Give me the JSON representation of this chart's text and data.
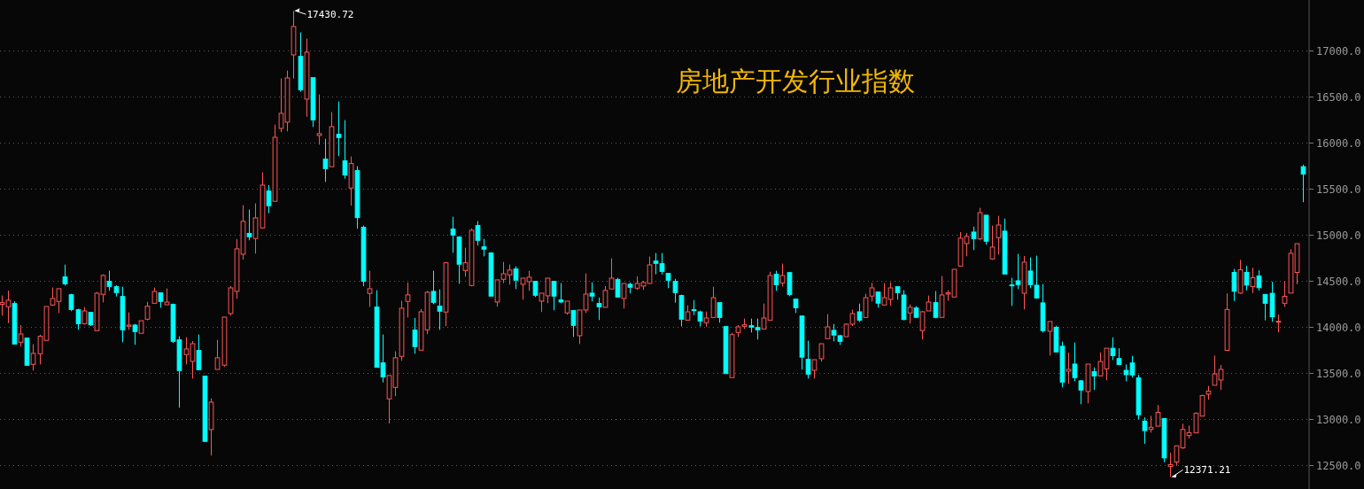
{
  "chart_data": {
    "type": "candlestick",
    "title": "房地产开发行业指数",
    "categories": [
      null,
      null,
      null,
      null,
      null,
      null,
      null,
      null,
      null,
      null,
      null,
      null,
      null,
      null,
      null,
      null,
      null,
      null,
      null,
      null,
      null,
      null,
      null,
      null,
      null,
      null,
      null,
      null,
      null,
      null,
      null,
      null,
      null,
      null,
      null,
      null,
      null,
      null,
      null,
      null,
      null,
      null,
      null,
      null,
      null,
      null,
      null,
      null,
      null,
      null,
      null,
      null,
      null,
      null,
      null,
      null,
      null,
      null,
      null,
      null,
      null,
      null,
      null,
      null,
      null,
      null,
      null,
      null,
      null,
      null,
      null,
      null,
      null,
      null,
      null,
      null,
      null,
      null,
      null,
      null,
      null,
      null,
      null,
      null,
      null,
      null,
      null,
      null,
      null,
      null,
      null,
      null,
      null,
      null,
      null,
      null,
      null,
      null,
      null,
      null,
      null,
      null,
      null,
      null,
      null,
      null,
      null,
      null,
      null,
      null,
      null,
      null,
      null,
      null,
      null,
      null,
      null,
      null,
      null,
      null,
      null,
      null,
      null,
      null,
      null,
      null,
      null,
      null,
      null,
      null,
      null,
      null,
      null,
      null,
      null,
      null,
      null,
      null,
      null,
      null,
      null,
      null,
      null,
      null,
      null,
      null,
      null,
      null,
      null,
      null,
      null,
      null,
      null,
      null,
      null,
      null,
      null,
      null,
      null,
      null,
      null,
      null,
      null,
      null,
      null,
      null,
      null,
      null,
      null,
      null,
      null,
      null,
      null,
      null,
      null,
      null,
      null,
      null,
      null,
      null,
      null,
      null,
      null,
      null,
      null,
      null,
      null,
      null,
      null,
      null,
      null,
      null,
      null,
      null,
      null,
      null,
      null,
      null,
      null,
      null,
      null,
      null,
      null,
      null,
      null,
      null
    ],
    "ohlc": [
      [
        14244,
        14340,
        14122,
        14263
      ],
      [
        14218,
        14394,
        14042,
        14289
      ],
      [
        14253,
        14279,
        13814,
        13814
      ],
      [
        13833,
        14019,
        13785,
        13923
      ],
      [
        13878,
        13878,
        13583,
        13583
      ],
      [
        13593,
        13811,
        13526,
        13712
      ],
      [
        13708,
        13914,
        13593,
        13898
      ],
      [
        13853,
        14221,
        13853,
        14221
      ],
      [
        14237,
        14426,
        14228,
        14308
      ],
      [
        14276,
        14414,
        14151,
        14414
      ],
      [
        14542,
        14676,
        14449,
        14468
      ],
      [
        14349,
        14359,
        14170,
        14189
      ],
      [
        14186,
        14196,
        13968,
        14035
      ],
      [
        14035,
        14215,
        14026,
        14173
      ],
      [
        14157,
        14157,
        14010,
        14022
      ],
      [
        13958,
        14378,
        13958,
        14365
      ],
      [
        14353,
        14571,
        14266,
        14558
      ],
      [
        14494,
        14609,
        14391,
        14439
      ],
      [
        14436,
        14452,
        14330,
        14372
      ],
      [
        14330,
        14436,
        13833,
        13968
      ],
      [
        14006,
        14157,
        13968,
        14019
      ],
      [
        14019,
        14032,
        13805,
        13949
      ],
      [
        13930,
        14067,
        13930,
        14067
      ],
      [
        14083,
        14272,
        14071,
        14224
      ],
      [
        14256,
        14426,
        14256,
        14385
      ],
      [
        14369,
        14369,
        14208,
        14276
      ],
      [
        14240,
        14417,
        14240,
        14269
      ],
      [
        14244,
        14253,
        13824,
        13843
      ],
      [
        13859,
        13898,
        13122,
        13526
      ],
      [
        13699,
        13888,
        13593,
        13760
      ],
      [
        13625,
        13846,
        13439,
        13817
      ],
      [
        13744,
        13917,
        13535,
        13535
      ],
      [
        13465,
        13465,
        12757,
        12757
      ],
      [
        12885,
        13224,
        12603,
        13183
      ],
      [
        13538,
        13859,
        13538,
        13664
      ],
      [
        13584,
        14106,
        13568,
        14106
      ],
      [
        14145,
        14443,
        14122,
        14423
      ],
      [
        14385,
        14952,
        14305,
        14847
      ],
      [
        14789,
        15321,
        14730,
        15145
      ],
      [
        15015,
        15273,
        14940,
        14978
      ],
      [
        14959,
        15340,
        14795,
        15183
      ],
      [
        15074,
        15677,
        15065,
        15539
      ],
      [
        15475,
        15539,
        15234,
        15315
      ],
      [
        15363,
        16196,
        15363,
        16058
      ],
      [
        16154,
        16696,
        16113,
        16318
      ],
      [
        16222,
        16782,
        16122,
        16702
      ],
      [
        16952,
        17430.72,
        16696,
        17260
      ],
      [
        16936,
        17196,
        16552,
        16574
      ],
      [
        16472,
        17129,
        16282,
        16981
      ],
      [
        16705,
        16705,
        16170,
        16247
      ],
      [
        16077,
        16523,
        15978,
        16097
      ],
      [
        15821,
        16042,
        15574,
        15718
      ],
      [
        15738,
        16331,
        15738,
        16173
      ],
      [
        16090,
        16446,
        15853,
        16055
      ],
      [
        15802,
        16244,
        15609,
        15648
      ],
      [
        15507,
        15850,
        15315,
        15773
      ],
      [
        15696,
        15744,
        15065,
        15186
      ],
      [
        15081,
        15100,
        14440,
        14494
      ],
      [
        14363,
        14609,
        14218,
        14414
      ],
      [
        14215,
        14398,
        13561,
        13561
      ],
      [
        13609,
        13917,
        13398,
        13456
      ],
      [
        13218,
        13472,
        12952,
        13472
      ],
      [
        13343,
        13734,
        13247,
        13664
      ],
      [
        13680,
        14283,
        13632,
        14202
      ],
      [
        14276,
        14481,
        14103,
        14347
      ],
      [
        13965,
        14097,
        13707,
        13786
      ],
      [
        13747,
        14193,
        13747,
        14164
      ],
      [
        13968,
        14391,
        13920,
        14375
      ],
      [
        14385,
        14609,
        14247,
        14266
      ],
      [
        14225,
        14407,
        13968,
        14170
      ],
      [
        14161,
        14705,
        14007,
        14696
      ],
      [
        15061,
        15196,
        14805,
        14997
      ],
      [
        14975,
        14984,
        14468,
        14680
      ],
      [
        14612,
        14859,
        14545,
        14696
      ],
      [
        14449,
        15068,
        14439,
        15048
      ],
      [
        15100,
        15148,
        14882,
        14939
      ],
      [
        14869,
        14955,
        14766,
        14843
      ],
      [
        14802,
        14811,
        14334,
        14334
      ],
      [
        14270,
        14510,
        14218,
        14510
      ],
      [
        14516,
        14705,
        14475,
        14577
      ],
      [
        14564,
        14677,
        14459,
        14616
      ],
      [
        14628,
        14657,
        14411,
        14507
      ],
      [
        14462,
        14529,
        14295,
        14529
      ],
      [
        14491,
        14609,
        14391,
        14539
      ],
      [
        14494,
        14494,
        14324,
        14343
      ],
      [
        14279,
        14366,
        14161,
        14366
      ],
      [
        14337,
        14529,
        14257,
        14529
      ],
      [
        14494,
        14494,
        14180,
        14334
      ],
      [
        14292,
        14475,
        14257,
        14270
      ],
      [
        14151,
        14279,
        14132,
        14279
      ],
      [
        14177,
        14177,
        13891,
        14016
      ],
      [
        13904,
        14183,
        13814,
        14183
      ],
      [
        14183,
        14580,
        14151,
        14356
      ],
      [
        14366,
        14484,
        14276,
        14334
      ],
      [
        14254,
        14318,
        14074,
        14218
      ],
      [
        14212,
        14443,
        14212,
        14395
      ],
      [
        14411,
        14744,
        14411,
        14529
      ],
      [
        14513,
        14532,
        14324,
        14324
      ],
      [
        14308,
        14471,
        14199,
        14471
      ],
      [
        14462,
        14481,
        14362,
        14430
      ],
      [
        14420,
        14548,
        14401,
        14471
      ],
      [
        14443,
        14500,
        14401,
        14481
      ],
      [
        14471,
        14763,
        14471,
        14673
      ],
      [
        14714,
        14801,
        14570,
        14689
      ],
      [
        14686,
        14801,
        14570,
        14602
      ],
      [
        14580,
        14580,
        14420,
        14506
      ],
      [
        14493,
        14522,
        14263,
        14372
      ],
      [
        14340,
        14349,
        14006,
        14083
      ],
      [
        14073,
        14234,
        14073,
        14163
      ],
      [
        14186,
        14291,
        14128,
        14179
      ],
      [
        14163,
        14176,
        14006,
        14064
      ],
      [
        14045,
        14166,
        14003,
        14096
      ],
      [
        14102,
        14436,
        14102,
        14317
      ],
      [
        14263,
        14263,
        14045,
        14102
      ],
      [
        14003,
        14003,
        13493,
        13493
      ],
      [
        13449,
        13936,
        13449,
        13916
      ],
      [
        13939,
        14019,
        13891,
        14000
      ],
      [
        14006,
        14090,
        13977,
        14022
      ],
      [
        14013,
        14090,
        13939,
        13997
      ],
      [
        13993,
        14090,
        13862,
        13968
      ],
      [
        13977,
        14253,
        13977,
        14096
      ],
      [
        14073,
        14599,
        14073,
        14557
      ],
      [
        14570,
        14609,
        14391,
        14458
      ],
      [
        14477,
        14686,
        14439,
        14557
      ],
      [
        14589,
        14589,
        14333,
        14352
      ],
      [
        14301,
        14301,
        14150,
        14208
      ],
      [
        14118,
        14118,
        13535,
        13671
      ],
      [
        13647,
        13849,
        13439,
        13487
      ],
      [
        13529,
        13644,
        13439,
        13644
      ],
      [
        13654,
        13817,
        13622,
        13817
      ],
      [
        13872,
        14138,
        13872,
        14000
      ],
      [
        13962,
        14032,
        13843,
        13911
      ],
      [
        13904,
        13913,
        13804,
        13843
      ],
      [
        13894,
        14038,
        13894,
        14029
      ],
      [
        14029,
        14186,
        14010,
        14144
      ],
      [
        14163,
        14253,
        14054,
        14073
      ],
      [
        14102,
        14359,
        14102,
        14317
      ],
      [
        14334,
        14477,
        14275,
        14423
      ],
      [
        14378,
        14378,
        14208,
        14257
      ],
      [
        14237,
        14474,
        14237,
        14317
      ],
      [
        14298,
        14484,
        14228,
        14423
      ],
      [
        14436,
        14436,
        14295,
        14372
      ],
      [
        14346,
        14398,
        14071,
        14080
      ],
      [
        14151,
        14244,
        14035,
        14212
      ],
      [
        14205,
        14225,
        14103,
        14103
      ],
      [
        13959,
        14173,
        13862,
        14164
      ],
      [
        14173,
        14340,
        14173,
        14269
      ],
      [
        14263,
        14388,
        14093,
        14103
      ],
      [
        14103,
        14551,
        14103,
        14346
      ],
      [
        14356,
        14398,
        14285,
        14369
      ],
      [
        14324,
        14625,
        14324,
        14625
      ],
      [
        14660,
        15029,
        14660,
        14962
      ],
      [
        14904,
        15019,
        14766,
        14981
      ],
      [
        15029,
        15087,
        14833,
        14958
      ],
      [
        14955,
        15292,
        14939,
        15240
      ],
      [
        15212,
        15212,
        14891,
        14930
      ],
      [
        14737,
        15099,
        14728,
        14866
      ],
      [
        14968,
        15205,
        14785,
        15106
      ],
      [
        15039,
        15176,
        14574,
        14574
      ],
      [
        14455,
        14532,
        14228,
        14449
      ],
      [
        14500,
        14792,
        14410,
        14459
      ],
      [
        14365,
        14769,
        14189,
        14702
      ],
      [
        14606,
        14753,
        14420,
        14459
      ],
      [
        14452,
        14773,
        14305,
        14314
      ],
      [
        14260,
        14465,
        13939,
        13959
      ],
      [
        13952,
        14058,
        13689,
        14058
      ],
      [
        13994,
        14013,
        13728,
        13728
      ],
      [
        13789,
        13840,
        13343,
        13401
      ],
      [
        13519,
        13721,
        13382,
        13539
      ],
      [
        13596,
        13830,
        13410,
        13449
      ],
      [
        13414,
        13423,
        13161,
        13314
      ],
      [
        13298,
        13596,
        13170,
        13596
      ],
      [
        13513,
        13560,
        13315,
        13468
      ],
      [
        13468,
        13723,
        13468,
        13624
      ],
      [
        13544,
        13768,
        13420,
        13768
      ],
      [
        13768,
        13886,
        13640,
        13688
      ],
      [
        13656,
        13768,
        13583,
        13592
      ],
      [
        13528,
        13592,
        13410,
        13481
      ],
      [
        13608,
        13685,
        13449,
        13478
      ],
      [
        13446,
        13481,
        12996,
        13047
      ],
      [
        12977,
        13018,
        12731,
        12874
      ],
      [
        12887,
        13034,
        12852,
        12910
      ],
      [
        12922,
        13152,
        12922,
        13072
      ],
      [
        13005,
        13005,
        12530,
        12578
      ],
      [
        12485,
        12635,
        12371.21,
        12505
      ],
      [
        12533,
        12709,
        12492,
        12709
      ],
      [
        12686,
        12948,
        12677,
        12887
      ],
      [
        12820,
        12929,
        12788,
        12852
      ],
      [
        12849,
        13072,
        12849,
        13063
      ],
      [
        13031,
        13264,
        13031,
        13254
      ],
      [
        13270,
        13359,
        13209,
        13302
      ],
      [
        13366,
        13688,
        13366,
        13490
      ],
      [
        13423,
        13586,
        13315,
        13538
      ],
      [
        13745,
        14364,
        13745,
        14189
      ],
      [
        14591,
        14629,
        14281,
        14387
      ],
      [
        14367,
        14728,
        14358,
        14619
      ],
      [
        14591,
        14661,
        14396,
        14453
      ],
      [
        14438,
        14642,
        14367,
        14533
      ],
      [
        14552,
        14613,
        14395,
        14425
      ],
      [
        14352,
        14352,
        14071,
        14256
      ],
      [
        14364,
        14489,
        14055,
        14109
      ],
      [
        14055,
        14135,
        13940,
        14061
      ],
      [
        14256,
        14495,
        14217,
        14332
      ],
      [
        14367,
        14843,
        14367,
        14798
      ],
      [
        14591,
        14903,
        14463,
        14903
      ],
      [
        15739,
        15761,
        15353,
        15659
      ]
    ],
    "colors": [
      "#ff5555",
      "#ff5555",
      "#00ffff",
      "#ff5555",
      "#00ffff",
      "#ff5555",
      "#ff5555",
      "#ff5555",
      "#ff5555",
      "#ff5555",
      "#00ffff",
      "#00ffff",
      "#00ffff",
      "#ff5555",
      "#00ffff",
      "#ff5555",
      "#ff5555",
      "#00ffff",
      "#00ffff",
      "#00ffff",
      "#ff5555",
      "#00ffff",
      "#ff5555",
      "#ff5555",
      "#ff5555",
      "#00ffff",
      "#ff5555",
      "#00ffff",
      "#00ffff",
      "#ff5555",
      "#ff5555",
      "#00ffff",
      "#00ffff",
      "#ff5555",
      "#ff5555",
      "#ff5555",
      "#ff5555",
      "#ff5555",
      "#ff5555",
      "#00ffff",
      "#ff5555",
      "#ff5555",
      "#00ffff",
      "#ff5555",
      "#ff5555",
      "#ff5555",
      "#ff5555",
      "#00ffff",
      "#ff5555",
      "#00ffff",
      "#ff5555",
      "#00ffff",
      "#ff5555",
      "#00ffff",
      "#00ffff",
      "#ff5555",
      "#00ffff",
      "#00ffff",
      "#ff5555",
      "#00ffff",
      "#00ffff",
      "#ff5555",
      "#ff5555",
      "#ff5555",
      "#ff5555",
      "#00ffff",
      "#ff5555",
      "#ff5555",
      "#00ffff",
      "#00ffff",
      "#ff5555",
      "#00ffff",
      "#00ffff",
      "#ff5555",
      "#ff5555",
      "#00ffff",
      "#00ffff",
      "#00ffff",
      "#ff5555",
      "#ff5555",
      "#ff5555",
      "#00ffff",
      "#ff5555",
      "#ff5555",
      "#00ffff",
      "#ff5555",
      "#ff5555",
      "#00ffff",
      "#00ffff",
      "#ff5555",
      "#00ffff",
      "#ff5555",
      "#ff5555",
      "#00ffff",
      "#00ffff",
      "#ff5555",
      "#ff5555",
      "#00ffff",
      "#ff5555",
      "#00ffff",
      "#ff5555",
      "#ff5555",
      "#ff5555",
      "#00ffff",
      "#00ffff",
      "#00ffff",
      "#00ffff",
      "#00ffff",
      "#ff5555",
      "#00ffff",
      "#00ffff",
      "#ff5555",
      "#ff5555",
      "#00ffff",
      "#00ffff",
      "#ff5555",
      "#ff5555",
      "#ff5555",
      "#00ffff",
      "#00ffff",
      "#ff5555",
      "#ff5555",
      "#00ffff",
      "#ff5555",
      "#00ffff",
      "#00ffff",
      "#00ffff",
      "#00ffff",
      "#ff5555",
      "#ff5555",
      "#ff5555",
      "#00ffff",
      "#00ffff",
      "#ff5555",
      "#ff5555",
      "#00ffff",
      "#ff5555",
      "#ff5555",
      "#00ffff",
      "#ff5555",
      "#ff5555",
      "#00ffff",
      "#00ffff",
      "#ff5555",
      "#00ffff",
      "#ff5555",
      "#ff5555",
      "#00ffff",
      "#ff5555",
      "#ff5555",
      "#ff5555",
      "#ff5555",
      "#ff5555",
      "#00ffff",
      "#ff5555",
      "#00ffff",
      "#ff5555",
      "#ff5555",
      "#00ffff",
      "#00ffff",
      "#00ffff",
      "#ff5555",
      "#00ffff",
      "#00ffff",
      "#00ffff",
      "#ff5555",
      "#00ffff",
      "#00ffff",
      "#ff5555",
      "#00ffff",
      "#00ffff",
      "#ff5555",
      "#00ffff",
      "#ff5555",
      "#ff5555",
      "#00ffff",
      "#00ffff",
      "#00ffff",
      "#00ffff",
      "#00ffff",
      "#00ffff",
      "#ff5555",
      "#ff5555",
      "#00ffff",
      "#ff5555",
      "#ff5555",
      "#ff5555",
      "#ff5555",
      "#ff5555",
      "#ff5555",
      "#ff5555",
      "#ff5555",
      "#ff5555",
      "#ff5555",
      "#00ffff",
      "#ff5555",
      "#00ffff",
      "#ff5555",
      "#00ffff",
      "#00ffff",
      "#00ffff",
      "#ff5555",
      "#ff5555",
      "#ff5555",
      "#ff5555",
      "#00ffff"
    ],
    "ylim": [
      12240,
      17548
    ],
    "yticks": [
      {
        "value": 12500,
        "label": "12500.0"
      },
      {
        "value": 13000,
        "label": "13000.0"
      },
      {
        "value": 13500,
        "label": "13500.0"
      },
      {
        "value": 14000,
        "label": "14000.0"
      },
      {
        "value": 14500,
        "label": "14500.0"
      },
      {
        "value": 15000,
        "label": "15000.0"
      },
      {
        "value": 15500,
        "label": "15500.0"
      },
      {
        "value": 16000,
        "label": "16000.0"
      },
      {
        "value": 16500,
        "label": "16500.0"
      },
      {
        "value": 17000,
        "label": "17000.0"
      }
    ],
    "grid": "y",
    "annotations": [
      "17430.72",
      "12371.21"
    ]
  }
}
